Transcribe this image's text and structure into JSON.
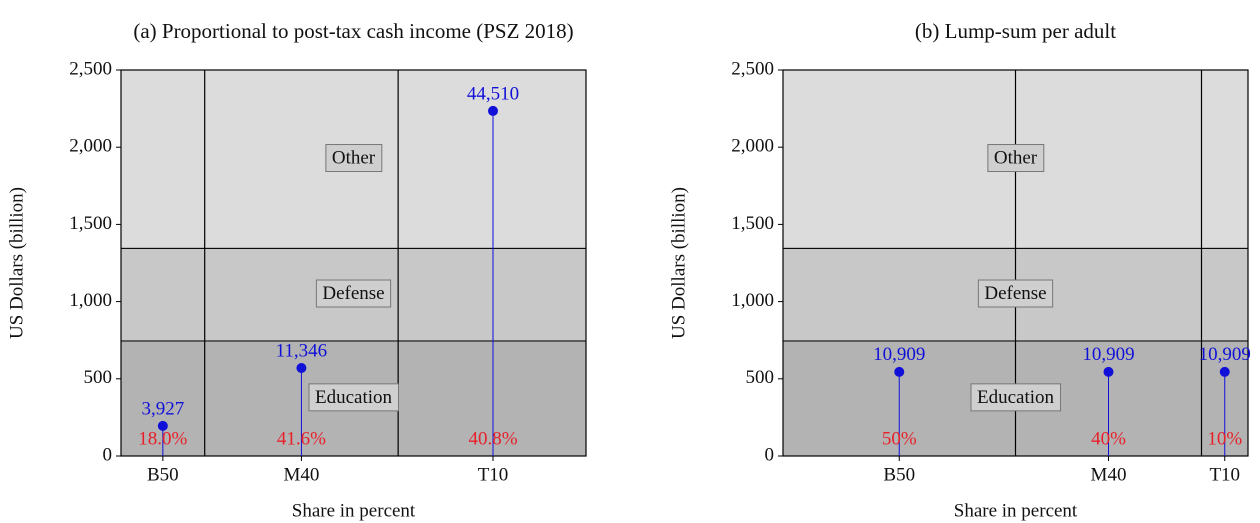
{
  "chart_data": [
    {
      "type": "lollipop",
      "title": "(a) Proportional to post-tax cash income (PSZ 2018)",
      "ylabel": "US Dollars (billion)",
      "xlabel": "Share in percent",
      "ylim": [
        0,
        2500
      ],
      "yticks": [
        0,
        500,
        {
          "value": 1000,
          "label": "1,000"
        },
        {
          "value": 1500,
          "label": "1,500"
        },
        {
          "value": 2000,
          "label": "2,000"
        },
        {
          "value": 2500,
          "label": "2,500"
        }
      ],
      "xlim": [
        0,
        100
      ],
      "bands": [
        {
          "label": "Education",
          "value": 745,
          "color": "#b3b3b3"
        },
        {
          "label": "Defense",
          "value": 600,
          "color": "#c8c8c8"
        },
        {
          "label": "Other",
          "value": 1155,
          "color": "#dcdcdc"
        }
      ],
      "categories": [
        "B50",
        "M40",
        "T10"
      ],
      "shares": [
        18.0,
        41.6,
        40.8
      ],
      "share_labels": [
        "18.0%",
        "41.6%",
        "40.8%"
      ],
      "share_color": "#e8202a",
      "values": [
        195,
        570,
        2235
      ],
      "per_adult": [
        {
          "value": 3927,
          "label": "3,927"
        },
        {
          "value": 11346,
          "label": "11,346"
        },
        {
          "value": 44510,
          "label": "44,510"
        }
      ],
      "color": "#1010d8"
    },
    {
      "type": "lollipop",
      "title": "(b) Lump-sum per adult",
      "ylabel": "US Dollars (billion)",
      "xlabel": "Share in percent",
      "ylim": [
        0,
        2500
      ],
      "yticks": [
        0,
        500,
        {
          "value": 1000,
          "label": "1,000"
        },
        {
          "value": 1500,
          "label": "1,500"
        },
        {
          "value": 2000,
          "label": "2,000"
        },
        {
          "value": 2500,
          "label": "2,500"
        }
      ],
      "xlim": [
        0,
        100
      ],
      "bands": [
        {
          "label": "Education",
          "value": 745,
          "color": "#b3b3b3"
        },
        {
          "label": "Defense",
          "value": 600,
          "color": "#c8c8c8"
        },
        {
          "label": "Other",
          "value": 1155,
          "color": "#dcdcdc"
        }
      ],
      "categories": [
        "B50",
        "M40",
        "T10"
      ],
      "shares": [
        50,
        40,
        10
      ],
      "share_labels": [
        "50%",
        "40%",
        "10%"
      ],
      "share_color": "#e8202a",
      "values": [
        545,
        545,
        545
      ],
      "per_adult": [
        {
          "value": 10909,
          "label": "10,909"
        },
        {
          "value": 10909,
          "label": "10,909"
        },
        {
          "value": 10909,
          "label": "10,909"
        }
      ],
      "color": "#1010d8"
    }
  ]
}
